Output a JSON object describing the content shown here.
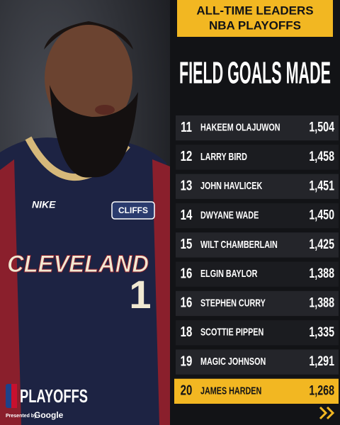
{
  "header": {
    "line1": "ALL-TIME LEADERS",
    "line2": "NBA PLAYOFFS"
  },
  "title": "FIELD GOALS MADE",
  "table": {
    "rows": [
      [
        "11",
        "HAKEEM OLAJUWON",
        "1,504"
      ],
      [
        "12",
        "LARRY BIRD",
        "1,458"
      ],
      [
        "13",
        "JOHN HAVLICEK",
        "1,451"
      ],
      [
        "14",
        "DWYANE WADE",
        "1,450"
      ],
      [
        "15",
        "WILT CHAMBERLAIN",
        "1,425"
      ],
      [
        "16",
        "ELGIN BAYLOR",
        "1,388"
      ],
      [
        "16",
        "STEPHEN CURRY",
        "1,388"
      ],
      [
        "18",
        "SCOTTIE PIPPEN",
        "1,335"
      ],
      [
        "19",
        "MAGIC JOHNSON",
        "1,291"
      ],
      [
        "20",
        "JAMES HARDEN",
        "1,268"
      ]
    ]
  },
  "branding": {
    "logo": "PLAYOFFS",
    "presented_by": "Presented by",
    "sponsor": "Google"
  },
  "jersey": {
    "brand": "NIKE",
    "patch": "CLIFFS",
    "team": "CLEVELAND",
    "number": "1"
  }
}
